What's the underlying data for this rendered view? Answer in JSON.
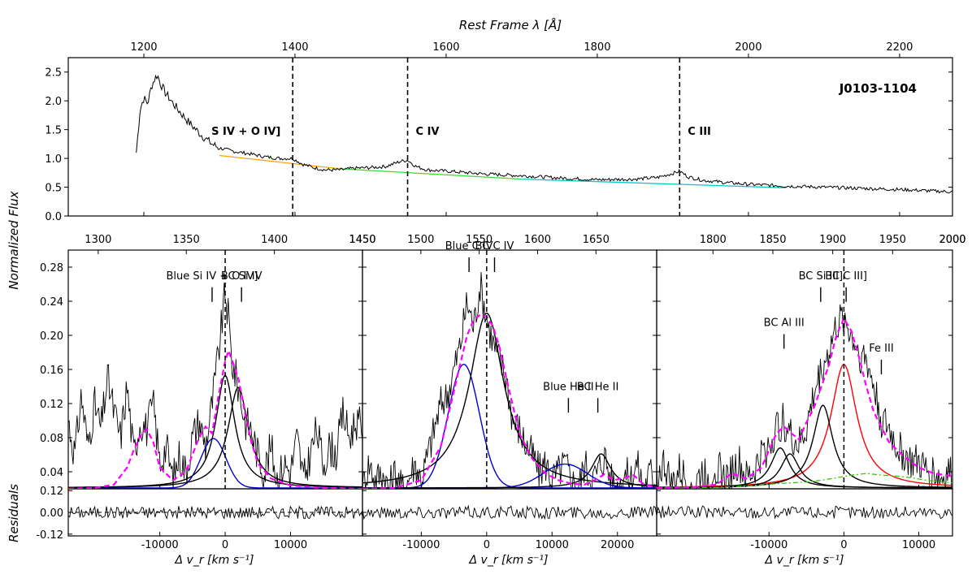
{
  "figure": {
    "object_label": "J0103-1104",
    "y_shared_label": "Normalized Flux",
    "residuals_label": "Residuals",
    "colors": {
      "spectrum": "#000000",
      "fit_total": "#ff00ff",
      "blue_component": "#0000cc",
      "bc_component": "#000000",
      "bc_c_iii": "#ff0000",
      "fe_iii_template": "#33cc00",
      "continuum_1": "#ffa500",
      "continuum_2": "#33dd33",
      "continuum_3": "#00cccc",
      "marker_line": "#000000"
    }
  },
  "chart_data": [
    {
      "id": "overview",
      "type": "line",
      "title": "",
      "xlabel": "Rest Frame λ [Å]",
      "ylabel": "",
      "xlim": [
        1100,
        2270
      ],
      "ylim": [
        0,
        2.75
      ],
      "xticks": [
        1200,
        1400,
        1600,
        1800,
        2000,
        2200
      ],
      "yticks": [
        0.0,
        0.5,
        1.0,
        1.5,
        2.0,
        2.5
      ],
      "vlines": [
        {
          "x": 1397,
          "label": "S IV + O IV]"
        },
        {
          "x": 1549,
          "label": "C IV"
        },
        {
          "x": 1909,
          "label": "C III"
        }
      ],
      "continuum": [
        {
          "x": [
            1300,
            1460
          ],
          "y": [
            1.05,
            0.82
          ],
          "color_key": "continuum_1"
        },
        {
          "x": [
            1460,
            1700
          ],
          "y": [
            0.82,
            0.64
          ],
          "color_key": "continuum_2"
        },
        {
          "x": [
            1700,
            2050
          ],
          "y": [
            0.64,
            0.49
          ],
          "color_key": "continuum_3"
        }
      ],
      "spectrum": {
        "x": [
          1190,
          1195,
          1200,
          1205,
          1210,
          1215,
          1218,
          1222,
          1228,
          1235,
          1245,
          1260,
          1275,
          1290,
          1300,
          1320,
          1340,
          1360,
          1380,
          1397,
          1410,
          1425,
          1440,
          1460,
          1480,
          1500,
          1520,
          1540,
          1549,
          1560,
          1575,
          1600,
          1650,
          1700,
          1750,
          1800,
          1850,
          1880,
          1900,
          1909,
          1920,
          1940,
          1970,
          2000,
          2050,
          2100,
          2150,
          2200,
          2250,
          2270
        ],
        "y": [
          1.1,
          1.85,
          2.05,
          1.95,
          2.25,
          2.4,
          2.45,
          2.3,
          2.15,
          2.02,
          1.85,
          1.62,
          1.42,
          1.25,
          1.18,
          1.12,
          1.08,
          1.03,
          1.0,
          1.0,
          0.9,
          0.84,
          0.8,
          0.8,
          0.83,
          0.84,
          0.86,
          0.95,
          0.97,
          0.86,
          0.8,
          0.78,
          0.73,
          0.7,
          0.66,
          0.63,
          0.64,
          0.67,
          0.74,
          0.78,
          0.68,
          0.62,
          0.58,
          0.55,
          0.52,
          0.5,
          0.48,
          0.46,
          0.43,
          0.42
        ]
      }
    },
    {
      "id": "panel_si_iv",
      "type": "line",
      "xlabel": "Δ v_r [km s⁻¹]",
      "top_axis_label_unit": "Å",
      "xlim": [
        -24000,
        21000
      ],
      "ylim": [
        0.02,
        0.3
      ],
      "xticks": [
        -10000,
        0,
        10000
      ],
      "yticks": [
        0.04,
        0.08,
        0.12,
        0.16,
        0.2,
        0.24,
        0.28
      ],
      "top_xlim": [
        1283,
        1450
      ],
      "top_xticks": [
        1300,
        1350,
        1400,
        1450
      ],
      "zero_line": 0,
      "annotations": [
        {
          "text": "Blue Si IV + O IV]",
          "x": -2000,
          "y": 0.245
        },
        {
          "text": "BC Si IV",
          "x": 2500,
          "y": 0.245
        }
      ],
      "components": [
        {
          "name": "Blue Si IV + O IV]",
          "color_key": "blue_component",
          "profile": "gauss",
          "center": -1800,
          "fwhm": 4500,
          "peak": 0.058
        },
        {
          "name": "BC Si IV (a)",
          "color_key": "bc_component",
          "profile": "lorentz",
          "center": 0,
          "fwhm": 3500,
          "peak": 0.132
        },
        {
          "name": "BC Si IV (b)",
          "color_key": "bc_component",
          "profile": "lorentz",
          "center": 2000,
          "fwhm": 3800,
          "peak": 0.118
        }
      ],
      "total_fit": {
        "x": [
          -24000,
          -20000,
          -17000,
          -15000,
          -14000,
          -13000,
          -12000,
          -11000,
          -10000,
          -8000,
          -6000,
          -5000,
          -4000,
          -3000,
          -2000,
          -1000,
          0,
          500,
          1000,
          2000,
          3000,
          4000,
          5000,
          7000,
          10000,
          15000,
          21000
        ],
        "y": [
          0.02,
          0.021,
          0.025,
          0.045,
          0.065,
          0.082,
          0.09,
          0.075,
          0.045,
          0.03,
          0.04,
          0.06,
          0.08,
          0.093,
          0.085,
          0.13,
          0.17,
          0.182,
          0.172,
          0.15,
          0.11,
          0.075,
          0.05,
          0.032,
          0.024,
          0.021,
          0.02
        ]
      },
      "observed": {
        "x": [
          -24000,
          -23000,
          -22000,
          -21000,
          -20000,
          -19000,
          -18000,
          -17000,
          -16000,
          -15000,
          -14000,
          -13000,
          -12000,
          -11000,
          -10000,
          -9000,
          -8000,
          -7000,
          -6000,
          -5000,
          -4000,
          -3000,
          -2000,
          -1000,
          0,
          500,
          1000,
          2000,
          3000,
          4000,
          5000,
          6000,
          7000,
          8000,
          9000,
          10000,
          11000,
          12000,
          13000,
          14000,
          15000,
          16000,
          17000,
          18000,
          19000,
          20000,
          21000
        ],
        "y": [
          0.1,
          0.06,
          0.13,
          0.07,
          0.12,
          0.09,
          0.15,
          0.11,
          0.08,
          0.14,
          0.06,
          0.1,
          0.09,
          0.12,
          0.05,
          0.07,
          0.03,
          0.06,
          0.04,
          0.08,
          0.1,
          0.07,
          0.12,
          0.18,
          0.25,
          0.22,
          0.17,
          0.14,
          0.1,
          0.09,
          0.06,
          0.04,
          0.07,
          0.03,
          0.05,
          0.04,
          0.08,
          0.03,
          0.06,
          0.09,
          0.05,
          0.07,
          0.06,
          0.11,
          0.08,
          0.1,
          0.09
        ]
      },
      "residual_ylim": [
        -0.13,
        0.13
      ],
      "residual_yticks": [
        -0.12,
        0.0,
        0.12
      ]
    },
    {
      "id": "panel_c_iv",
      "type": "line",
      "xlabel": "Δ v_r [km s⁻¹]",
      "xlim": [
        -19000,
        26000
      ],
      "ylim": [
        0.02,
        0.3
      ],
      "xticks": [
        -10000,
        0,
        10000,
        20000
      ],
      "top_xlim": [
        1450,
        1702
      ],
      "top_xticks": [
        1450,
        1500,
        1550,
        1600,
        1650
      ],
      "zero_line": 0,
      "annotations": [
        {
          "text": "Blue C IV",
          "x": -2700,
          "y": 0.28
        },
        {
          "text": "BC C IV",
          "x": 1200,
          "y": 0.28
        },
        {
          "text": "Blue He II",
          "x": 12500,
          "y": 0.115
        },
        {
          "text": "BC He II",
          "x": 17000,
          "y": 0.115
        }
      ],
      "components": [
        {
          "name": "Blue C IV",
          "color_key": "blue_component",
          "profile": "gauss",
          "center": -3500,
          "fwhm": 5600,
          "peak": 0.145
        },
        {
          "name": "BC C IV",
          "color_key": "bc_component",
          "profile": "lorentz",
          "center": 0,
          "fwhm": 6500,
          "peak": 0.205
        },
        {
          "name": "Blue He II",
          "color_key": "blue_component",
          "profile": "gauss",
          "center": 12000,
          "fwhm": 8000,
          "peak": 0.028
        },
        {
          "name": "BC He II",
          "color_key": "bc_component",
          "profile": "lorentz",
          "center": 17500,
          "fwhm": 3500,
          "peak": 0.04
        }
      ],
      "total_fit": {
        "x": [
          -19000,
          -14000,
          -10000,
          -7000,
          -5000,
          -4000,
          -3000,
          -2000,
          -1000,
          0,
          1000,
          2000,
          3000,
          5000,
          7000,
          9000,
          11000,
          13000,
          15000,
          16500,
          18000,
          19500,
          21000,
          22500,
          24000,
          26000
        ],
        "y": [
          0.02,
          0.021,
          0.03,
          0.07,
          0.135,
          0.168,
          0.2,
          0.218,
          0.224,
          0.222,
          0.21,
          0.185,
          0.15,
          0.085,
          0.055,
          0.038,
          0.03,
          0.026,
          0.025,
          0.03,
          0.037,
          0.03,
          0.033,
          0.036,
          0.025,
          0.022
        ]
      },
      "observed": {
        "x": [
          -19000,
          -18000,
          -17000,
          -16000,
          -15000,
          -14000,
          -13000,
          -12000,
          -11000,
          -10000,
          -9000,
          -8000,
          -7000,
          -6000,
          -5000,
          -4000,
          -3000,
          -2000,
          -1000,
          0,
          1000,
          2000,
          3000,
          4000,
          5000,
          6000,
          7000,
          8000,
          9000,
          10000,
          11000,
          12000,
          13000,
          14000,
          15000,
          16000,
          17000,
          18000,
          19000,
          20000,
          21000,
          22000,
          23000,
          24000,
          25000,
          26000
        ],
        "y": [
          0.02,
          0.05,
          0.03,
          0.04,
          0.02,
          0.04,
          0.02,
          0.03,
          0.05,
          0.03,
          0.06,
          0.09,
          0.12,
          0.13,
          0.16,
          0.19,
          0.24,
          0.21,
          0.26,
          0.22,
          0.19,
          0.17,
          0.15,
          0.1,
          0.09,
          0.07,
          0.06,
          0.04,
          0.05,
          0.03,
          0.04,
          0.05,
          0.03,
          0.02,
          0.05,
          0.03,
          0.04,
          0.06,
          0.03,
          0.02,
          0.04,
          0.03,
          0.05,
          0.02,
          0.04,
          0.03
        ]
      },
      "residual_ylim": [
        -0.13,
        0.13
      ]
    },
    {
      "id": "panel_c_iii",
      "type": "line",
      "xlabel": "Δ v_r [km s⁻¹]",
      "xlim": [
        -25000,
        14500
      ],
      "ylim": [
        0.02,
        0.3
      ],
      "xticks": [
        -10000,
        0,
        10000
      ],
      "top_xlim": [
        1753,
        2000
      ],
      "top_xticks": [
        1800,
        1850,
        1900,
        1950,
        2000
      ],
      "zero_line": 0,
      "annotations": [
        {
          "text": "BC Al III",
          "x": -8000,
          "y": 0.19
        },
        {
          "text": "BC Si III]",
          "x": -3100,
          "y": 0.245
        },
        {
          "text": "BC C III]",
          "x": 300,
          "y": 0.245
        },
        {
          "text": "Fe III",
          "x": 5000,
          "y": 0.16
        }
      ],
      "components": [
        {
          "name": "BC C III]",
          "color_key": "bc_c_iii",
          "profile": "lorentz",
          "center": 0,
          "fwhm": 4200,
          "peak": 0.145
        },
        {
          "name": "BC Si III]",
          "color_key": "bc_component",
          "profile": "lorentz",
          "center": -2800,
          "fwhm": 3200,
          "peak": 0.097
        },
        {
          "name": "BC Al III (a)",
          "color_key": "bc_component",
          "profile": "lorentz",
          "center": -8500,
          "fwhm": 3000,
          "peak": 0.047
        },
        {
          "name": "BC Al III (b)",
          "color_key": "bc_component",
          "profile": "lorentz",
          "center": -7200,
          "fwhm": 3000,
          "peak": 0.04
        }
      ],
      "fe_template": {
        "x": [
          -25000,
          -20000,
          -16000,
          -12000,
          -9000,
          -7000,
          -5000,
          -3000,
          -1000,
          1000,
          3000,
          5000,
          7000,
          9000,
          11000,
          14500
        ],
        "y": [
          0.021,
          0.021,
          0.022,
          0.024,
          0.026,
          0.027,
          0.028,
          0.03,
          0.033,
          0.036,
          0.038,
          0.036,
          0.035,
          0.033,
          0.03,
          0.027
        ]
      },
      "total_fit": {
        "x": [
          -25000,
          -20000,
          -17000,
          -15000,
          -13000,
          -11000,
          -10000,
          -9000,
          -8000,
          -7000,
          -6000,
          -5000,
          -4000,
          -3000,
          -2000,
          -1000,
          0,
          1000,
          2000,
          3000,
          4000,
          6000,
          8000,
          10000,
          12000,
          14500
        ],
        "y": [
          0.021,
          0.022,
          0.025,
          0.038,
          0.032,
          0.045,
          0.065,
          0.085,
          0.093,
          0.085,
          0.078,
          0.098,
          0.115,
          0.14,
          0.165,
          0.2,
          0.22,
          0.205,
          0.175,
          0.14,
          0.11,
          0.075,
          0.058,
          0.045,
          0.038,
          0.035
        ]
      },
      "observed": {
        "x": [
          -25000,
          -24000,
          -23000,
          -22000,
          -21000,
          -20000,
          -19000,
          -18000,
          -17000,
          -16000,
          -15000,
          -14000,
          -13000,
          -12000,
          -11000,
          -10000,
          -9000,
          -8000,
          -7000,
          -6000,
          -5000,
          -4000,
          -3000,
          -2000,
          -1000,
          0,
          1000,
          2000,
          3000,
          4000,
          5000,
          6000,
          7000,
          8000,
          9000,
          10000,
          11000,
          12000,
          13000,
          14000,
          14500
        ],
        "y": [
          0.03,
          0.05,
          0.02,
          0.04,
          0.03,
          0.02,
          0.04,
          0.03,
          0.05,
          0.03,
          0.04,
          0.05,
          0.03,
          0.04,
          0.06,
          0.07,
          0.09,
          0.1,
          0.08,
          0.07,
          0.09,
          0.13,
          0.16,
          0.18,
          0.21,
          0.22,
          0.2,
          0.18,
          0.17,
          0.14,
          0.1,
          0.09,
          0.07,
          0.06,
          0.05,
          0.05,
          0.04,
          0.04,
          0.03,
          0.04,
          0.03
        ]
      },
      "residual_ylim": [
        -0.13,
        0.13
      ]
    }
  ]
}
